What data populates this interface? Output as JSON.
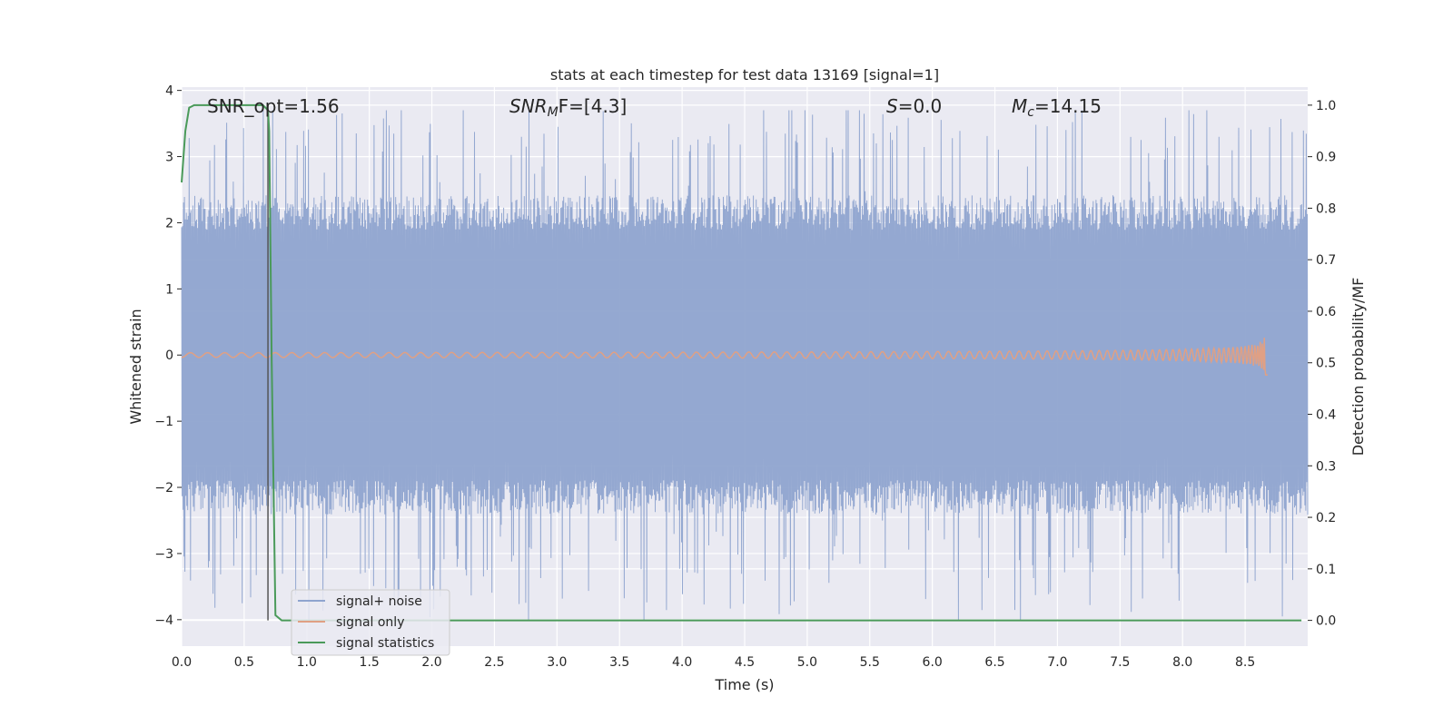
{
  "chart_data": {
    "type": "line",
    "title": "stats at each timestep for test data 13169 [signal=1]",
    "xlabel": "Time (s)",
    "ylabel_left": "Whitened strain",
    "ylabel_right": "Detection probability/MF",
    "xlim": [
      0.0,
      9.0
    ],
    "ylim_left": [
      -4.4,
      4.05
    ],
    "ylim_right": [
      -0.05,
      1.035
    ],
    "x_ticks": [
      "0.0",
      "0.5",
      "1.0",
      "1.5",
      "2.0",
      "2.5",
      "3.0",
      "3.5",
      "4.0",
      "4.5",
      "5.0",
      "5.5",
      "6.0",
      "6.5",
      "7.0",
      "7.5",
      "8.0",
      "8.5"
    ],
    "y_left_ticks": [
      "4",
      "3",
      "2",
      "1",
      "0",
      "−1",
      "−2",
      "−3",
      "−4"
    ],
    "y_right_ticks": [
      "1.0",
      "0.9",
      "0.8",
      "0.7",
      "0.6",
      "0.5",
      "0.4",
      "0.3",
      "0.2",
      "0.1",
      "0.0"
    ],
    "grid": true,
    "legend_position": "lower-left",
    "annotations": {
      "snr_opt": "SNR_opt=1.56",
      "snr_mf_main": "SNR",
      "snr_mf_sub": "M",
      "snr_mf_rest": "F=[4.3]",
      "s_main": "S",
      "s_rest": "=0.0",
      "mc_main": "M",
      "mc_sub": "c",
      "mc_rest": "=14.15"
    },
    "vertical_marker_x": 0.69,
    "series": [
      {
        "name": "signal+ noise",
        "color": "#8fa4cf",
        "axis": "left",
        "x_range": [
          0.0,
          9.0
        ],
        "typical_amplitude": 2.1,
        "peak_range": [
          -4.0,
          3.7
        ]
      },
      {
        "name": "signal only",
        "color": "#e0a084",
        "axis": "left",
        "x_range": [
          0.0,
          8.68
        ],
        "chirp_peak_time": 8.66,
        "peak_amplitude": 0.3
      },
      {
        "name": "signal statistics",
        "color": "#4a9a5a",
        "axis": "right",
        "x": [
          0.0,
          0.03,
          0.06,
          0.1,
          0.2,
          0.4,
          0.6,
          0.65,
          0.69,
          0.7,
          0.72,
          0.75,
          0.8,
          0.9,
          1.5,
          3.0,
          5.0,
          7.0,
          8.95
        ],
        "y": [
          0.85,
          0.95,
          0.995,
          1.0,
          1.0,
          1.0,
          1.0,
          1.0,
          0.99,
          0.95,
          0.5,
          0.01,
          0.0,
          0.0,
          0.0,
          0.0,
          0.0,
          0.0,
          0.0
        ]
      }
    ]
  }
}
